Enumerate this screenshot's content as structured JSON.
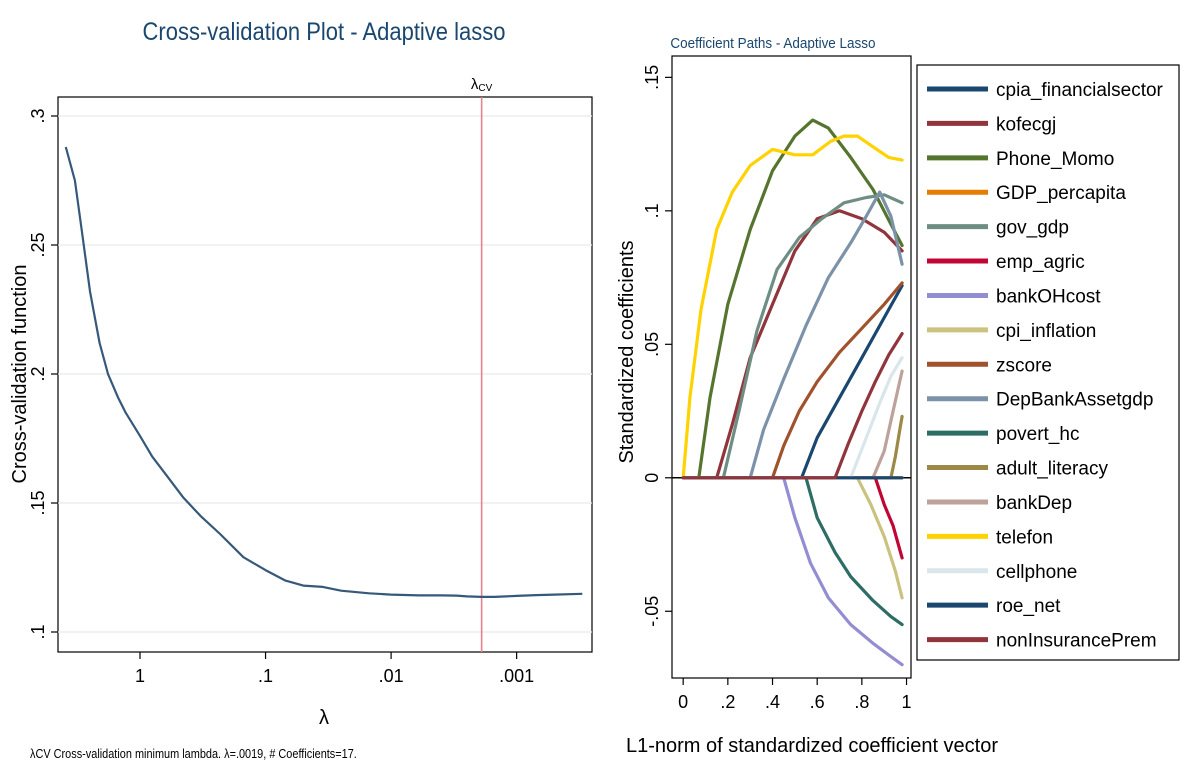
{
  "chart_data": [
    {
      "type": "line",
      "title": "Cross-validation Plot - Adaptive lasso",
      "xlabel": "λ",
      "ylabel": "Cross-validation function",
      "x_scale": "log, reversed",
      "x_tick_labels": [
        "1",
        ".1",
        ".01",
        ".001"
      ],
      "x_ticks": [
        1,
        0.1,
        0.01,
        0.001
      ],
      "y_tick_labels": [
        ".1",
        ".15",
        ".2",
        ".25",
        ".3"
      ],
      "y_ticks": [
        0.1,
        0.15,
        0.2,
        0.25,
        0.3
      ],
      "ylim": [
        0.1,
        0.3
      ],
      "grid": true,
      "cv_marker": {
        "label": "λCV",
        "label_main": "λ",
        "label_sub": "CV",
        "x": 0.0019,
        "color": "#e8828e"
      },
      "footnote": "λCV  Cross-validation minimum lambda.  λ=.0019, # Coefficients=17.",
      "series": [
        {
          "color": "#36587a",
          "x": [
            3.9,
            3.3,
            2.9,
            2.5,
            2.1,
            1.8,
            1.5,
            1.3,
            1.0,
            0.8,
            0.6,
            0.45,
            0.33,
            0.23,
            0.15,
            0.1,
            0.07,
            0.05,
            0.035,
            0.025,
            0.015,
            0.01,
            0.006,
            0.004,
            0.003,
            0.0025,
            0.0019,
            0.0015,
            0.001,
            0.0007,
            0.0005,
            0.0003
          ],
          "y": [
            0.288,
            0.275,
            0.255,
            0.232,
            0.212,
            0.2,
            0.191,
            0.185,
            0.176,
            0.168,
            0.16,
            0.152,
            0.145,
            0.138,
            0.129,
            0.124,
            0.12,
            0.118,
            0.1175,
            0.116,
            0.115,
            0.1145,
            0.1142,
            0.1142,
            0.1141,
            0.1138,
            0.1136,
            0.1136,
            0.114,
            0.1143,
            0.1145,
            0.1148
          ]
        }
      ]
    },
    {
      "type": "line",
      "title": "Coefficient Paths - Adaptive Lasso",
      "xlabel": "L1-norm of standardized coefficient vector",
      "ylabel": "Standardized coefficients",
      "x_tick_labels": [
        "0",
        ".2",
        ".4",
        ".6",
        ".8",
        "1"
      ],
      "x_ticks": [
        0,
        0.2,
        0.4,
        0.6,
        0.8,
        1
      ],
      "y_tick_labels": [
        "-.05",
        "0",
        ".05",
        ".1",
        ".15"
      ],
      "y_ticks": [
        -0.05,
        0,
        0.05,
        0.1,
        0.15
      ],
      "xlim": [
        -0.05,
        1.02
      ],
      "ylim": [
        -0.075,
        0.158
      ],
      "zero_line": true,
      "legend": "right",
      "series": [
        {
          "name": "cpia_financialsector",
          "color": "#1a476f",
          "x": [
            0,
            0.53,
            0.6,
            0.7,
            0.8,
            0.9,
            0.98
          ],
          "y": [
            0,
            0,
            0.015,
            0.03,
            0.045,
            0.06,
            0.072
          ]
        },
        {
          "name": "kofecgj",
          "color": "#90353b",
          "x": [
            0,
            0.15,
            0.22,
            0.3,
            0.4,
            0.5,
            0.6,
            0.7,
            0.8,
            0.9,
            0.98
          ],
          "y": [
            0,
            0,
            0.02,
            0.045,
            0.065,
            0.085,
            0.097,
            0.1,
            0.097,
            0.092,
            0.085
          ]
        },
        {
          "name": "Phone_Momo",
          "color": "#55752f",
          "x": [
            0,
            0.07,
            0.12,
            0.2,
            0.3,
            0.4,
            0.5,
            0.58,
            0.65,
            0.75,
            0.85,
            0.93,
            0.98
          ],
          "y": [
            0,
            0,
            0.03,
            0.065,
            0.093,
            0.115,
            0.128,
            0.134,
            0.131,
            0.12,
            0.108,
            0.095,
            0.087
          ]
        },
        {
          "name": "GDP_percapita",
          "color": "#e37e00",
          "x": [
            0,
            0.98
          ],
          "y": [
            0,
            0
          ]
        },
        {
          "name": "gov_gdp",
          "color": "#6e8e84",
          "x": [
            0,
            0.18,
            0.25,
            0.33,
            0.42,
            0.52,
            0.62,
            0.72,
            0.82,
            0.9,
            0.98
          ],
          "y": [
            0,
            0,
            0.025,
            0.055,
            0.078,
            0.09,
            0.097,
            0.103,
            0.105,
            0.106,
            0.103
          ]
        },
        {
          "name": "emp_agric",
          "color": "#c10534",
          "x": [
            0,
            0.86,
            0.9,
            0.94,
            0.98
          ],
          "y": [
            0,
            0,
            -0.01,
            -0.018,
            -0.03
          ]
        },
        {
          "name": "bankOHcost",
          "color": "#938dd2",
          "x": [
            0,
            0.45,
            0.5,
            0.57,
            0.65,
            0.75,
            0.85,
            0.93,
            0.98
          ],
          "y": [
            0,
            0,
            -0.015,
            -0.032,
            -0.045,
            -0.055,
            -0.062,
            -0.067,
            -0.07
          ]
        },
        {
          "name": "cpi_inflation",
          "color": "#cac27e",
          "x": [
            0,
            0.78,
            0.84,
            0.9,
            0.95,
            0.98
          ],
          "y": [
            0,
            0,
            -0.01,
            -0.022,
            -0.035,
            -0.045
          ]
        },
        {
          "name": "zscore",
          "color": "#a0522d",
          "x": [
            0,
            0.4,
            0.45,
            0.52,
            0.6,
            0.7,
            0.8,
            0.9,
            0.98
          ],
          "y": [
            0,
            0,
            0.012,
            0.025,
            0.036,
            0.047,
            0.056,
            0.065,
            0.073
          ]
        },
        {
          "name": "DepBankAssetgdp",
          "color": "#7b92a8",
          "x": [
            0,
            0.3,
            0.36,
            0.45,
            0.55,
            0.65,
            0.75,
            0.82,
            0.88,
            0.93,
            0.98
          ],
          "y": [
            0,
            0,
            0.018,
            0.037,
            0.057,
            0.075,
            0.088,
            0.098,
            0.107,
            0.098,
            0.08
          ]
        },
        {
          "name": "povert_hc",
          "color": "#2d6d66",
          "x": [
            0,
            0.55,
            0.6,
            0.68,
            0.75,
            0.85,
            0.93,
            0.98
          ],
          "y": [
            0,
            0,
            -0.015,
            -0.028,
            -0.037,
            -0.046,
            -0.052,
            -0.055
          ]
        },
        {
          "name": "adult_literacy",
          "color": "#9c8847",
          "x": [
            0,
            0.93,
            0.95,
            0.97,
            0.98
          ],
          "y": [
            0,
            0,
            0.008,
            0.018,
            0.023
          ]
        },
        {
          "name": "bankDep",
          "color": "#bfa19c",
          "x": [
            0,
            0.85,
            0.9,
            0.94,
            0.98
          ],
          "y": [
            0,
            0,
            0.01,
            0.025,
            0.04
          ]
        },
        {
          "name": "telefon",
          "color": "#ffd200",
          "x": [
            0,
            0.03,
            0.08,
            0.15,
            0.22,
            0.3,
            0.4,
            0.5,
            0.58,
            0.66,
            0.72,
            0.78,
            0.85,
            0.92,
            0.98
          ],
          "y": [
            0,
            0.03,
            0.063,
            0.093,
            0.107,
            0.117,
            0.123,
            0.121,
            0.121,
            0.126,
            0.128,
            0.128,
            0.124,
            0.12,
            0.119
          ]
        },
        {
          "name": "cellphone",
          "color": "#d9e6eb",
          "x": [
            0,
            0.75,
            0.82,
            0.88,
            0.93,
            0.98
          ],
          "y": [
            0,
            0,
            0.015,
            0.028,
            0.038,
            0.045
          ]
        },
        {
          "name": "roe_net",
          "color": "#1a476f",
          "x": [
            0,
            0.98
          ],
          "y": [
            0,
            0
          ]
        },
        {
          "name": "nonInsurancePrem",
          "color": "#90353b",
          "x": [
            0,
            0.68,
            0.74,
            0.8,
            0.86,
            0.92,
            0.98
          ],
          "y": [
            0,
            0,
            0.013,
            0.025,
            0.036,
            0.046,
            0.054
          ]
        }
      ]
    }
  ]
}
